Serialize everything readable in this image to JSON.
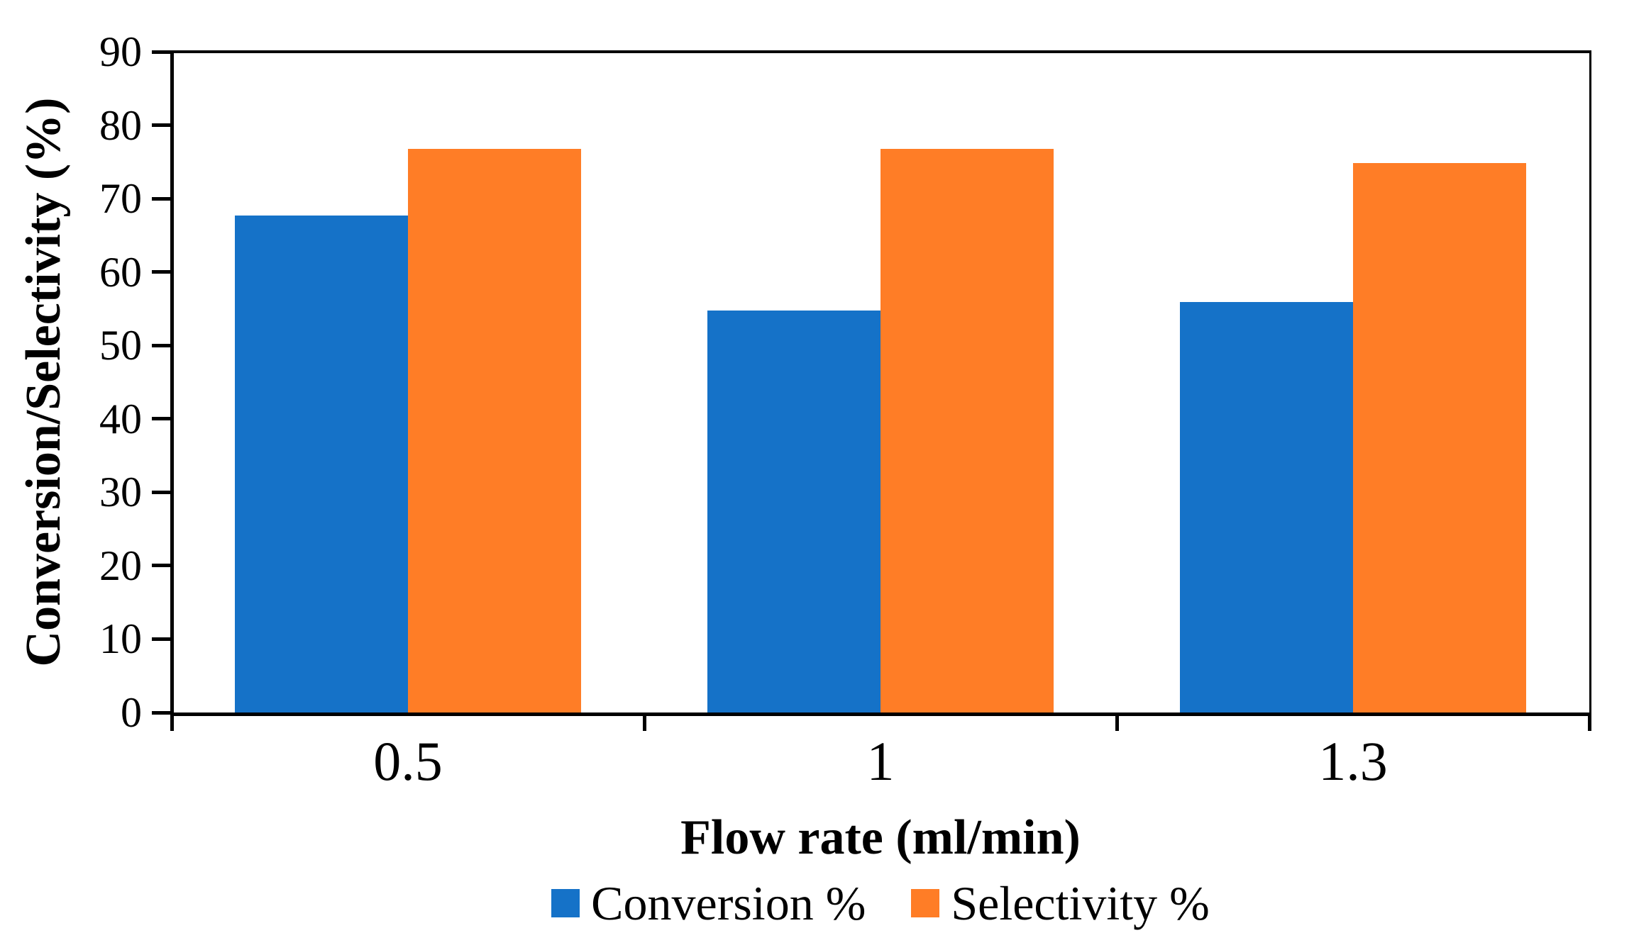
{
  "figure": {
    "background": "#ffffff",
    "text_color": "#000000",
    "axis_color": "#000000"
  },
  "chart_data": {
    "type": "bar",
    "title": "",
    "xlabel": "Flow rate (ml/min)",
    "ylabel": "Conversion/Selectivity (%)",
    "categories": [
      "0.5",
      "1",
      "1.3"
    ],
    "series": [
      {
        "name": "Conversion %",
        "color": "#1572C8",
        "values": [
          67.7,
          54.8,
          55.9
        ]
      },
      {
        "name": "Selectivity %",
        "color": "#FF7D26",
        "values": [
          76.8,
          76.8,
          74.8
        ]
      }
    ],
    "ylim": [
      0,
      90
    ],
    "ytick_step": 10,
    "ytick_labels": [
      "0",
      "10",
      "20",
      "30",
      "40",
      "50",
      "60",
      "70",
      "80",
      "90"
    ],
    "grid": false,
    "legend_position": "bottom"
  }
}
